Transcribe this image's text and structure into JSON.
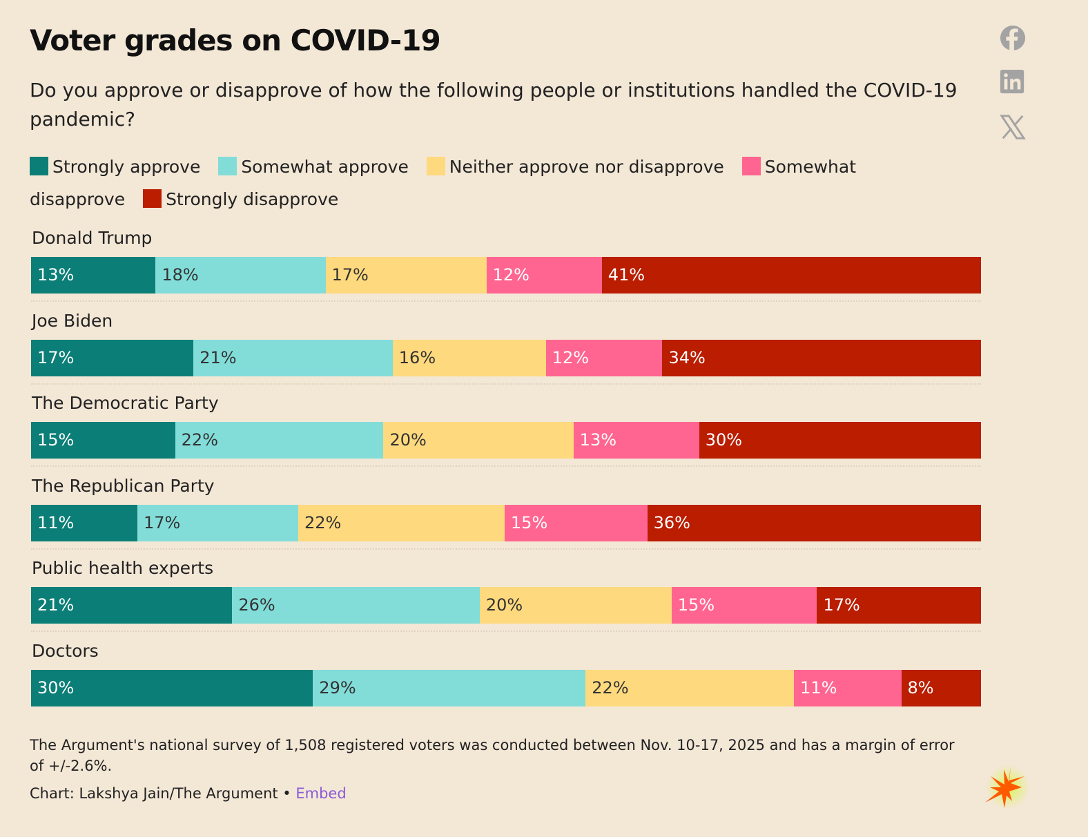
{
  "header": {
    "title": "Voter grades on COVID-19",
    "subtitle": "Do you approve or disapprove of how the following people or institutions handled the COVID-19 pandemic?"
  },
  "share_icons": [
    "facebook-icon",
    "linkedin-icon",
    "x-icon"
  ],
  "chart_data": {
    "type": "bar",
    "orientation": "horizontal-stacked-100",
    "title": "Voter grades on COVID-19",
    "categories": [
      "Donald Trump",
      "Joe Biden",
      "The Democratic Party",
      "The Republican Party",
      "Public health experts",
      "Doctors"
    ],
    "series": [
      {
        "name": "Strongly approve",
        "color": "#0b7f77",
        "text_color": "#ffffff",
        "values": [
          13,
          17,
          15,
          11,
          21,
          30
        ]
      },
      {
        "name": "Somewhat approve",
        "color": "#82ddd9",
        "text_color": "#333333",
        "values": [
          18,
          21,
          22,
          17,
          26,
          29
        ]
      },
      {
        "name": "Neither approve nor disapprove",
        "color": "#ffd97e",
        "text_color": "#333333",
        "values": [
          17,
          16,
          20,
          22,
          20,
          22
        ]
      },
      {
        "name": "Somewhat disapprove",
        "color": "#ff6590",
        "text_color": "#ffffff",
        "values": [
          12,
          12,
          13,
          15,
          15,
          11
        ]
      },
      {
        "name": "Strongly disapprove",
        "color": "#ba1d00",
        "text_color": "#ffffff",
        "values": [
          41,
          34,
          30,
          36,
          17,
          8
        ]
      }
    ],
    "value_suffix": "%",
    "legend_position": "top"
  },
  "footer": {
    "note": "The Argument's national survey of 1,508 registered voters was conducted between Nov. 10-17, 2025 and has a margin of error of +/-2.6%.",
    "credit": "Chart: Lakshya Jain/The Argument • ",
    "embed_label": "Embed"
  }
}
